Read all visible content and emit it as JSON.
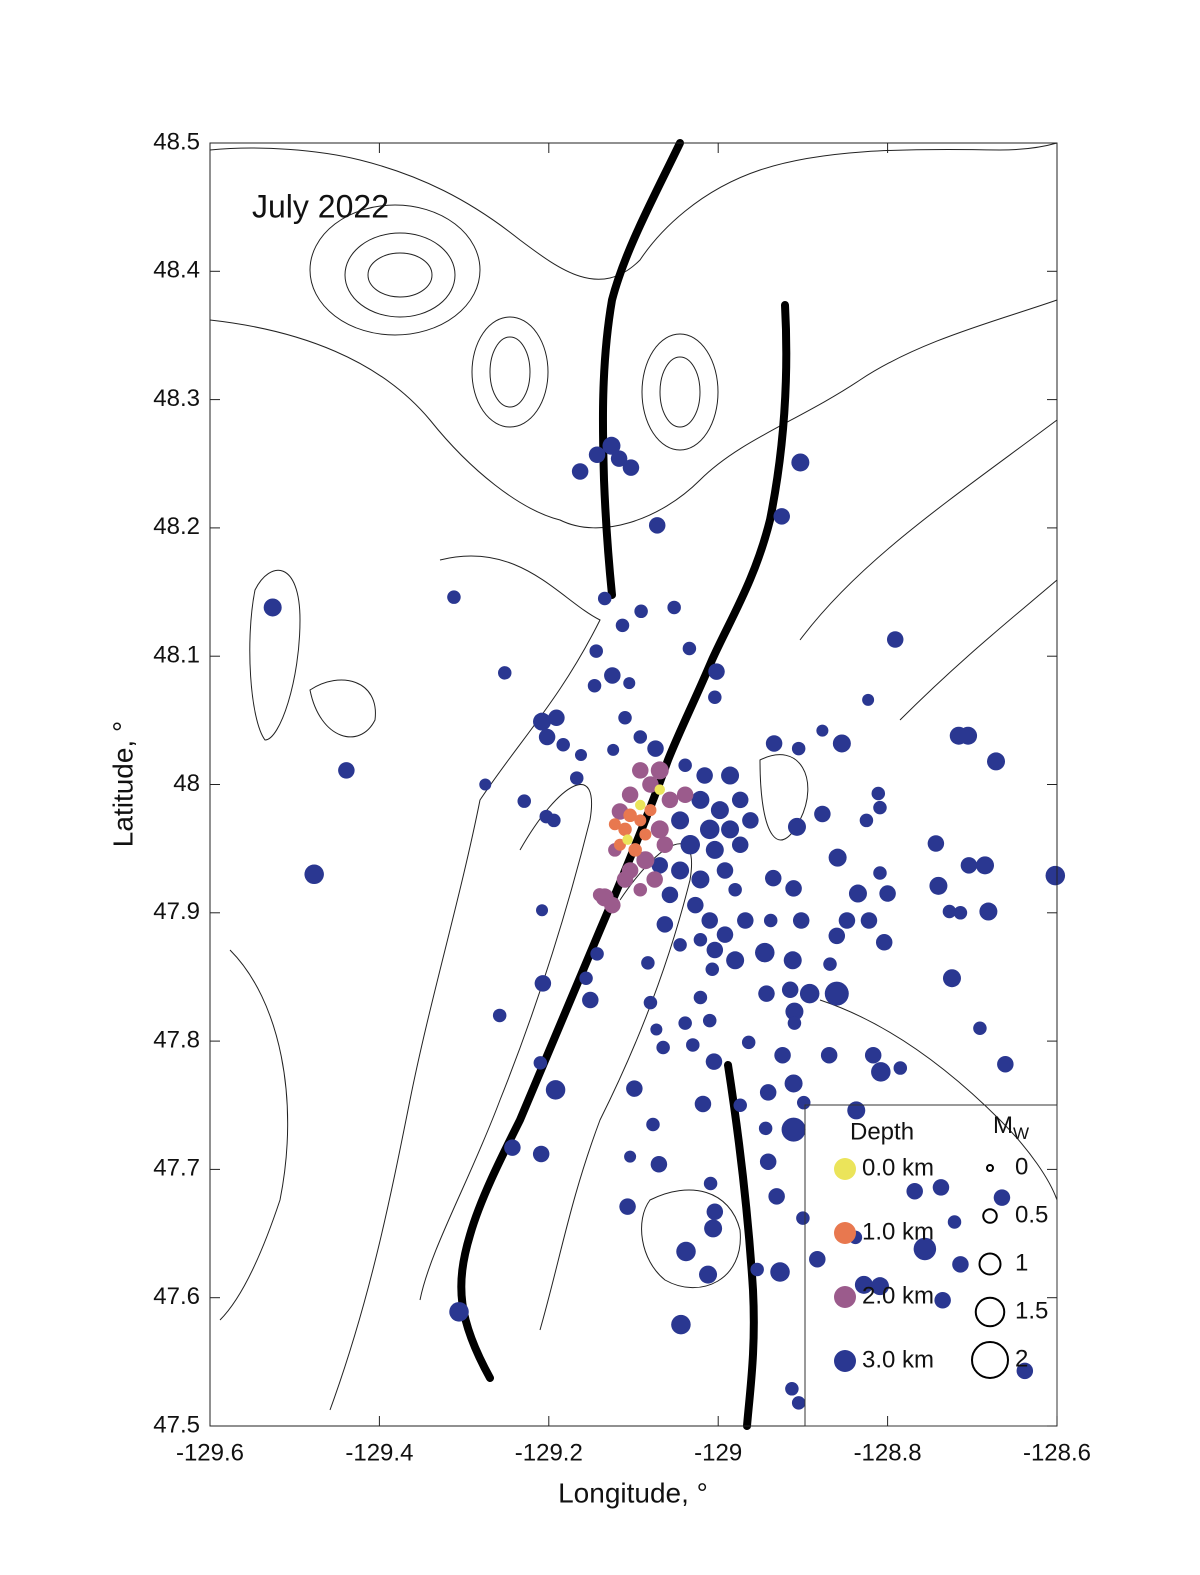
{
  "chart_data": {
    "type": "scatter",
    "title": "July 2022",
    "xlabel": "Longitude, °",
    "ylabel": "Latitude, °",
    "xlim": [
      -129.6,
      -128.6
    ],
    "ylim": [
      47.5,
      48.5
    ],
    "xticks": [
      -129.6,
      -129.4,
      -129.2,
      -129,
      -128.8,
      -128.6
    ],
    "yticks": [
      47.5,
      47.6,
      47.7,
      47.8,
      47.9,
      48,
      48.1,
      48.2,
      48.3,
      48.4,
      48.5
    ],
    "legend_title": "Depth",
    "legend_position": "lower right",
    "size_legend": {
      "title": "M",
      "title_subscript": "W",
      "values": [
        0,
        0.5,
        1,
        1.5,
        2
      ]
    },
    "series": [
      {
        "name": "0.0 km",
        "color": "#ebe45a",
        "x": [
          -129.107,
          -129.092,
          -129.069
        ],
        "y": [
          47.957,
          47.984,
          47.996
        ],
        "size": [
          0.3,
          0.3,
          0.3
        ]
      },
      {
        "name": "1.0 km",
        "color": "#e8784f",
        "x": [
          -129.104,
          -129.092,
          -129.11,
          -129.086,
          -129.116,
          -129.098,
          -129.08,
          -129.122
        ],
        "y": [
          47.976,
          47.972,
          47.965,
          47.961,
          47.953,
          47.949,
          47.98,
          47.969
        ],
        "size": [
          0.5,
          0.4,
          0.5,
          0.4,
          0.4,
          0.5,
          0.4,
          0.4
        ]
      },
      {
        "name": "2.0 km",
        "color": "#9b5b8c",
        "x": [
          -129.134,
          -129.125,
          -129.14,
          -129.092,
          -129.069,
          -129.08,
          -129.057,
          -129.039,
          -129.104,
          -129.116,
          -129.069,
          -129.086,
          -129.104,
          -129.075,
          -129.092,
          -129.11,
          -129.063,
          -129.122
        ],
        "y": [
          47.912,
          47.906,
          47.914,
          48.011,
          48.011,
          48.0,
          47.988,
          47.992,
          47.992,
          47.979,
          47.965,
          47.941,
          47.933,
          47.926,
          47.918,
          47.926,
          47.953,
          47.949
        ],
        "size": [
          0.8,
          0.7,
          0.5,
          0.7,
          0.8,
          0.7,
          0.7,
          0.7,
          0.7,
          0.7,
          0.8,
          0.8,
          0.7,
          0.7,
          0.5,
          0.7,
          0.7,
          0.5
        ]
      },
      {
        "name": "3.0 km",
        "color": "#2a3791",
        "x": [
          -129.526,
          -129.439,
          -129.477,
          -129.312,
          -129.252,
          -129.163,
          -129.143,
          -129.126,
          -129.117,
          -129.103,
          -129.072,
          -128.903,
          -128.925,
          -129.134,
          -129.091,
          -129.052,
          -129.113,
          -129.144,
          -129.125,
          -129.146,
          -129.105,
          -129.034,
          -129.002,
          -129.004,
          -128.791,
          -128.823,
          -129.208,
          -129.191,
          -129.202,
          -129.183,
          -129.11,
          -129.092,
          -129.124,
          -129.162,
          -129.167,
          -129.074,
          -129.275,
          -129.229,
          -129.203,
          -129.194,
          -128.934,
          -128.905,
          -128.854,
          -128.716,
          -128.705,
          -128.672,
          -128.877,
          -128.811,
          -128.809,
          -128.825,
          -128.743,
          -128.704,
          -128.685,
          -128.602,
          -128.74,
          -128.681,
          -128.727,
          -128.714,
          -128.859,
          -128.877,
          -128.907,
          -128.935,
          -128.911,
          -128.809,
          -128.835,
          -128.8,
          -128.822,
          -128.848,
          -128.86,
          -128.804,
          -128.902,
          -128.938,
          -128.724,
          -128.86,
          -128.892,
          -128.915,
          -128.943,
          -128.868,
          -128.912,
          -128.945,
          -128.91,
          -128.91,
          -128.691,
          -128.661,
          -128.817,
          -128.808,
          -128.785,
          -128.869,
          -128.924,
          -128.964,
          -128.911,
          -128.837,
          -128.899,
          -128.941,
          -128.974,
          -128.944,
          -128.911,
          -128.941,
          -128.768,
          -128.737,
          -128.665,
          -128.721,
          -128.756,
          -128.714,
          -128.883,
          -128.838,
          -128.828,
          -128.809,
          -128.735,
          -128.9,
          -128.931,
          -128.927,
          -128.954,
          -128.913,
          -128.905,
          -128.638,
          -129.044,
          -129.038,
          -129.012,
          -129.006,
          -129.004,
          -129.009,
          -129.07,
          -129.107,
          -129.104,
          -129.077,
          -129.099,
          -129.018,
          -129.192,
          -129.209,
          -129.243,
          -129.21,
          -129.306,
          -129.258,
          -129.207,
          -129.151,
          -129.156,
          -129.208,
          -129.143,
          -129.083,
          -129.08,
          -129.073,
          -129.065,
          -129.03,
          -129.01,
          -129.005,
          -129.039,
          -129.021,
          -129.021,
          -128.998,
          -128.974,
          -129.01,
          -128.986,
          -128.962,
          -129.033,
          -129.004,
          -128.974,
          -129.045,
          -129.021,
          -128.992,
          -129.057,
          -129.027,
          -128.98,
          -129.045,
          -129.016,
          -128.986,
          -129.039,
          -129.01,
          -128.992,
          -128.968,
          -129.021,
          -129.004,
          -128.98,
          -129.045,
          -129.063,
          -129.007,
          -129.069
        ],
        "y": [
          48.138,
          48.011,
          47.93,
          48.146,
          48.087,
          48.244,
          48.257,
          48.264,
          48.254,
          48.247,
          48.202,
          48.251,
          48.209,
          48.145,
          48.135,
          48.138,
          48.124,
          48.104,
          48.085,
          48.077,
          48.079,
          48.106,
          48.088,
          48.068,
          48.113,
          48.066,
          48.049,
          48.052,
          48.037,
          48.031,
          48.052,
          48.037,
          48.027,
          48.023,
          48.005,
          48.028,
          48.0,
          47.987,
          47.975,
          47.972,
          48.032,
          48.028,
          48.032,
          48.038,
          48.038,
          48.018,
          48.042,
          47.993,
          47.982,
          47.972,
          47.954,
          47.937,
          47.937,
          47.929,
          47.921,
          47.901,
          47.901,
          47.9,
          47.943,
          47.977,
          47.967,
          47.927,
          47.919,
          47.931,
          47.915,
          47.915,
          47.894,
          47.894,
          47.882,
          47.877,
          47.894,
          47.894,
          47.849,
          47.837,
          47.837,
          47.84,
          47.837,
          47.86,
          47.863,
          47.869,
          47.823,
          47.814,
          47.81,
          47.782,
          47.789,
          47.776,
          47.779,
          47.789,
          47.789,
          47.799,
          47.767,
          47.746,
          47.752,
          47.76,
          47.75,
          47.732,
          47.731,
          47.706,
          47.683,
          47.686,
          47.678,
          47.659,
          47.638,
          47.626,
          47.63,
          47.647,
          47.61,
          47.609,
          47.598,
          47.662,
          47.679,
          47.62,
          47.622,
          47.529,
          47.518,
          47.543,
          47.579,
          47.636,
          47.618,
          47.654,
          47.667,
          47.689,
          47.704,
          47.671,
          47.71,
          47.735,
          47.763,
          47.751,
          47.762,
          47.712,
          47.717,
          47.783,
          47.589,
          47.82,
          47.845,
          47.832,
          47.849,
          47.902,
          47.868,
          47.861,
          47.83,
          47.809,
          47.795,
          47.797,
          47.816,
          47.784,
          47.814,
          47.834,
          47.988,
          47.98,
          47.988,
          47.965,
          47.965,
          47.972,
          47.953,
          47.949,
          47.953,
          47.933,
          47.926,
          47.933,
          47.914,
          47.906,
          47.918,
          47.972,
          48.007,
          48.007,
          48.015,
          47.894,
          47.883,
          47.894,
          47.879,
          47.871,
          47.863,
          47.875,
          47.891,
          47.856,
          47.937
        ],
        "size": [
          0.8,
          0.7,
          0.9,
          0.5,
          0.5,
          0.7,
          0.7,
          0.8,
          0.7,
          0.7,
          0.7,
          0.8,
          0.7,
          0.5,
          0.5,
          0.5,
          0.5,
          0.5,
          0.7,
          0.5,
          0.4,
          0.5,
          0.7,
          0.5,
          0.7,
          0.4,
          0.8,
          0.7,
          0.7,
          0.5,
          0.5,
          0.5,
          0.4,
          0.4,
          0.5,
          0.7,
          0.4,
          0.5,
          0.5,
          0.5,
          0.7,
          0.5,
          0.8,
          0.8,
          0.8,
          0.8,
          0.4,
          0.5,
          0.5,
          0.5,
          0.7,
          0.7,
          0.8,
          0.9,
          0.8,
          0.8,
          0.5,
          0.5,
          0.8,
          0.7,
          0.8,
          0.7,
          0.7,
          0.5,
          0.8,
          0.7,
          0.7,
          0.7,
          0.7,
          0.7,
          0.7,
          0.5,
          0.8,
          1.2,
          0.9,
          0.7,
          0.7,
          0.5,
          0.8,
          0.9,
          0.8,
          0.5,
          0.5,
          0.7,
          0.7,
          0.9,
          0.5,
          0.7,
          0.7,
          0.5,
          0.8,
          0.8,
          0.5,
          0.7,
          0.5,
          0.5,
          1.2,
          0.7,
          0.7,
          0.7,
          0.7,
          0.5,
          1.1,
          0.7,
          0.7,
          0.5,
          0.8,
          0.8,
          0.7,
          0.5,
          0.7,
          0.9,
          0.5,
          0.5,
          0.5,
          0.7,
          0.9,
          0.9,
          0.8,
          0.8,
          0.7,
          0.5,
          0.7,
          0.7,
          0.4,
          0.5,
          0.7,
          0.7,
          0.9,
          0.7,
          0.7,
          0.5,
          0.9,
          0.5,
          0.7,
          0.7,
          0.5,
          0.4,
          0.5,
          0.5,
          0.5,
          0.4,
          0.5,
          0.5,
          0.5,
          0.7,
          0.5,
          0.5,
          0.8,
          0.8,
          0.7,
          0.9,
          0.8,
          0.7,
          0.9,
          0.8,
          0.7,
          0.8,
          0.8,
          0.7,
          0.7,
          0.7,
          0.5,
          0.8,
          0.7,
          0.8,
          0.5,
          0.7,
          0.7,
          0.7,
          0.5,
          0.7,
          0.8,
          0.5,
          0.7,
          0.5,
          0.7
        ]
      }
    ]
  }
}
